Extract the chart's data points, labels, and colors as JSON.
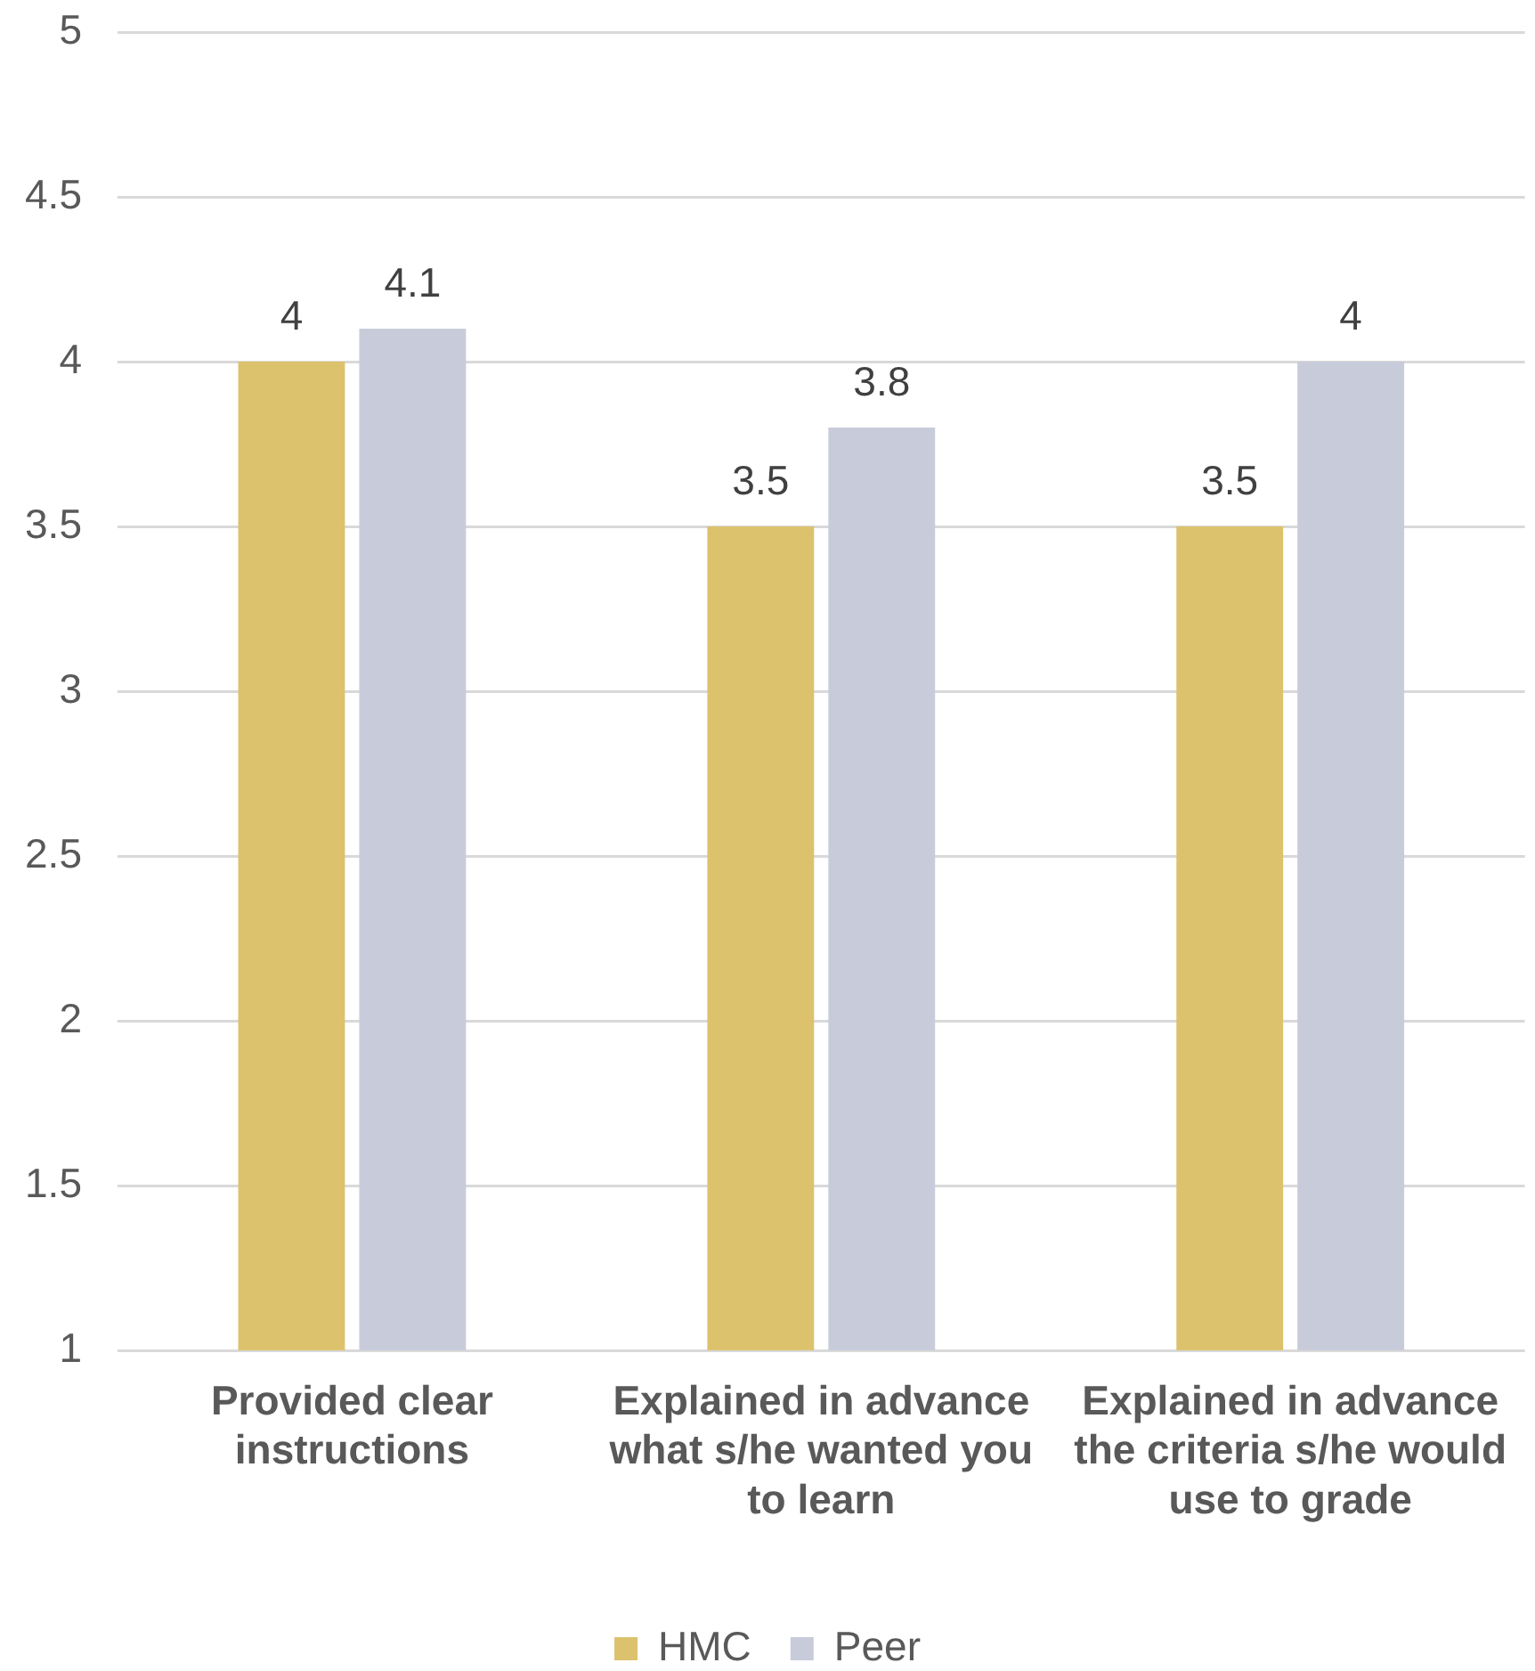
{
  "chart_data": {
    "type": "bar",
    "categories": [
      "Provided clear instructions",
      "Explained in advance what s/he wanted you to learn",
      "Explained in advance the criteria s/he would use to grade"
    ],
    "series": [
      {
        "name": "HMC",
        "color": "#dcc26c",
        "values": [
          4,
          3.5,
          3.5
        ]
      },
      {
        "name": "Peer",
        "color": "#c8cbda",
        "values": [
          4.1,
          3.8,
          4
        ]
      }
    ],
    "ylim": [
      1,
      5
    ],
    "yticks": [
      1,
      1.5,
      2,
      2.5,
      3,
      3.5,
      4,
      4.5,
      5
    ],
    "grid": "y",
    "legend": "bottom",
    "data_labels": true
  }
}
